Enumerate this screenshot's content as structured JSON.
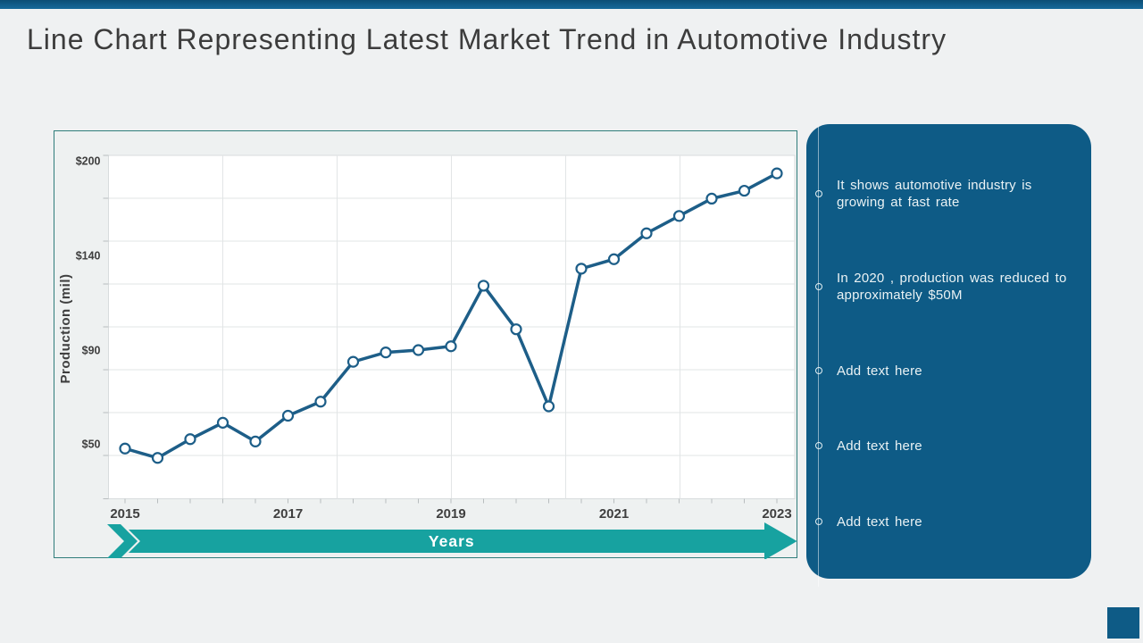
{
  "slide": {
    "title": "Line Chart Representing Latest Market Trend in Automotive Industry"
  },
  "theme": {
    "background": "#EFF1F2",
    "top_bar_gradient_top": "#0C4E75",
    "top_bar_gradient_bottom": "#17699A",
    "accent_teal": "#17A2A0",
    "panel_blue": "#0E5B86",
    "line_blue": "#1D5E88",
    "title_text": "#3C3C3C",
    "axis_text": "#3F3F3F"
  },
  "chart_data": {
    "type": "line",
    "title": "",
    "xlabel": "Years",
    "ylabel": "Production (mil)",
    "x": [
      2015,
      2015.4,
      2015.8,
      2016.2,
      2016.6,
      2017,
      2017.4,
      2017.8,
      2018.2,
      2018.6,
      2019,
      2019.4,
      2019.8,
      2020.2,
      2020.6,
      2021,
      2021.4,
      2021.8,
      2022.2,
      2022.6,
      2023
    ],
    "x_tick_labels": [
      "2015",
      "2017",
      "2019",
      "2021",
      "2023"
    ],
    "y_ticks": [
      {
        "label": "$200",
        "value": 200
      },
      {
        "label": "$140",
        "value": 140
      },
      {
        "label": "$90",
        "value": 90
      },
      {
        "label": "$50",
        "value": 50
      }
    ],
    "ylim": [
      40,
      205
    ],
    "grid": true,
    "legend": "none",
    "series": [
      {
        "name": "Production (mil)",
        "marker": "open-circle",
        "values": [
          48,
          44,
          52,
          59,
          51,
          62,
          68,
          85,
          89,
          90,
          92,
          124,
          101,
          66,
          133,
          138,
          154,
          165,
          176,
          181,
          192
        ]
      }
    ]
  },
  "panel": {
    "bullets": [
      "It shows automotive industry is\ngrowing at fast rate",
      "In 2020 , production was reduced to\napproximately $50M",
      "Add text here",
      "Add text here",
      "Add text here"
    ]
  }
}
